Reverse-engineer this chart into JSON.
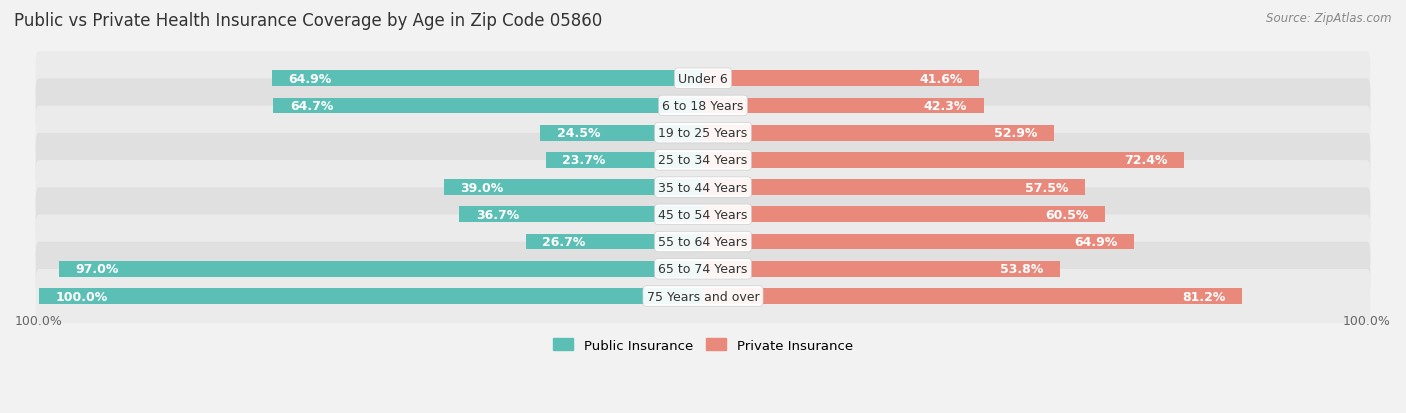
{
  "title": "Public vs Private Health Insurance Coverage by Age in Zip Code 05860",
  "source": "Source: ZipAtlas.com",
  "categories": [
    "Under 6",
    "6 to 18 Years",
    "19 to 25 Years",
    "25 to 34 Years",
    "35 to 44 Years",
    "45 to 54 Years",
    "55 to 64 Years",
    "65 to 74 Years",
    "75 Years and over"
  ],
  "public_values": [
    64.9,
    64.7,
    24.5,
    23.7,
    39.0,
    36.7,
    26.7,
    97.0,
    100.0
  ],
  "private_values": [
    41.6,
    42.3,
    52.9,
    72.4,
    57.5,
    60.5,
    64.9,
    53.8,
    81.2
  ],
  "public_color": "#5bbfb5",
  "private_color": "#e8897c",
  "public_color_light": "#aaddd9",
  "private_color_light": "#f2bdb6",
  "bar_height": 0.58,
  "background_color": "#f2f2f2",
  "row_bg_light": "#ebebeb",
  "row_bg_dark": "#e0e0e0",
  "max_value": 100.0,
  "label_fontsize": 9.0,
  "title_fontsize": 12,
  "source_fontsize": 8.5,
  "inside_label_threshold": 20
}
